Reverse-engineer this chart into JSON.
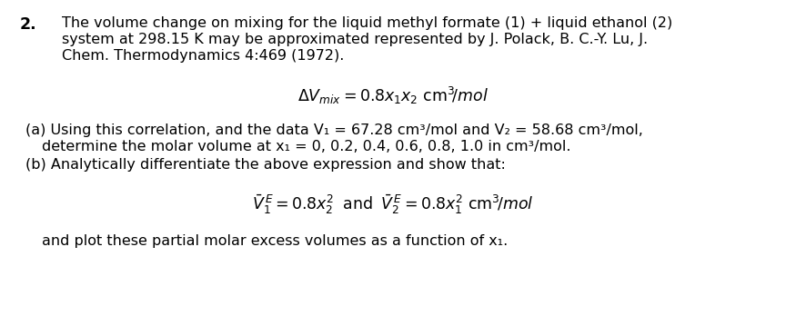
{
  "background_color": "#ffffff",
  "fig_width": 8.64,
  "fig_height": 3.48,
  "dpi": 100,
  "number": "2.",
  "line1": "The volume change on mixing for the liquid methyl formate (1) + liquid ethanol (2)",
  "line2": "system at 298.15 K may be approximated represented by J. Polack, B. C.-Y. Lu, J.",
  "line3": "Chem. Thermodynamics 4:469 (1972).",
  "eq_main": "$\\Delta V_{mix} = 0.8x_1x_2\\ \\mathrm{cm}^3\\!/\\mathit{mol}$",
  "part_a1": "(a) Using this correlation, and the data V",
  "part_a1b": "1",
  "part_a1c": " = 67.28 cm",
  "part_a1d": "3",
  "part_a1e": "/mol and V",
  "part_a1f": "2",
  "part_a1g": " = 58.68 cm",
  "part_a1h": "3",
  "part_a1i": "/mol,",
  "part_a2": "     determine the molar volume at x",
  "part_a2b": "1",
  "part_a2c": " = 0, 0.2, 0.4, 0.6, 0.8, 1.0 in cm",
  "part_a2d": "3",
  "part_a2e": "/mol.",
  "part_b1": "(b) Analytically differentiate the above expression and show that:",
  "eq_b": "$\\bar{V}_1^{\\,E} = 0.8x_2^2\\;\\;\\mathrm{and}\\;\\; \\bar{V}_2^{\\,E} = 0.8x_1^2\\ \\mathrm{cm}^3\\!/\\mathit{mol}$",
  "part_b2": "and plot these partial molar excess volumes as a function of x",
  "part_b2b": "1",
  "part_b2c": ".",
  "font_size": 11.5,
  "font_size_number": 12.5,
  "font_size_eq": 12.5
}
